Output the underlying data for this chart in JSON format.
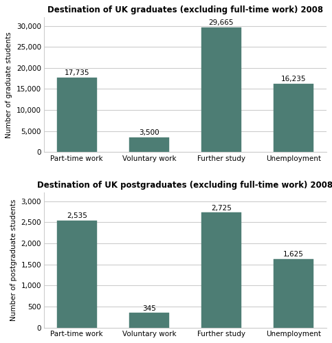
{
  "grad_title": "Destination of UK graduates (excluding full-time work) 2008",
  "postgrad_title": "Destination of UK postgraduates (excluding full-time work) 2008",
  "categories": [
    "Part-time work",
    "Voluntary work",
    "Further study",
    "Unemployment"
  ],
  "grad_values": [
    17735,
    3500,
    29665,
    16235
  ],
  "postgrad_values": [
    2535,
    345,
    2725,
    1625
  ],
  "grad_labels": [
    "17,735",
    "3,500",
    "29,665",
    "16,235"
  ],
  "postgrad_labels": [
    "2,535",
    "345",
    "2,725",
    "1,625"
  ],
  "bar_color": "#4d7d74",
  "grad_ylabel": "Number of graduate students",
  "postgrad_ylabel": "Number of postgraduate students",
  "grad_ylim": [
    0,
    32000
  ],
  "postgrad_ylim": [
    0,
    3200
  ],
  "grad_yticks": [
    0,
    5000,
    10000,
    15000,
    20000,
    25000,
    30000
  ],
  "postgrad_yticks": [
    0,
    500,
    1000,
    1500,
    2000,
    2500,
    3000
  ],
  "background_color": "#ffffff",
  "plot_bg_color": "#ffffff",
  "grid_color": "#cccccc",
  "title_fontsize": 8.5,
  "label_fontsize": 7.5,
  "tick_fontsize": 7.5,
  "ylabel_fontsize": 7.5
}
